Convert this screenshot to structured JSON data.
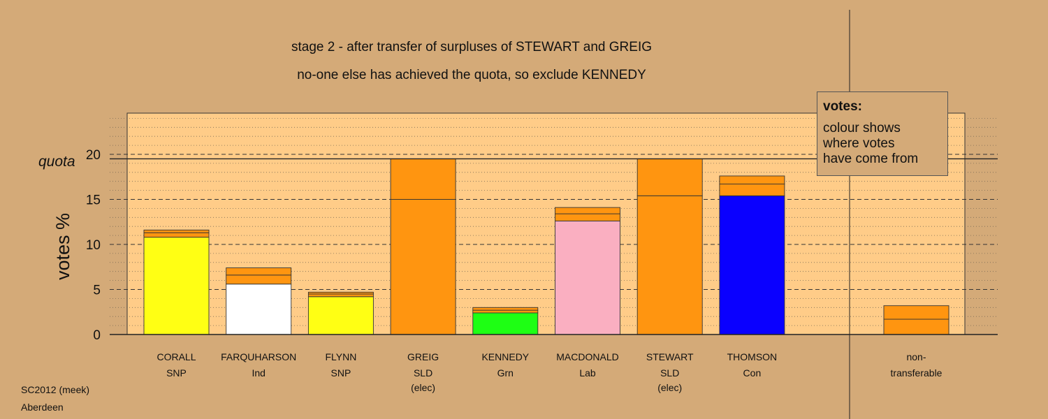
{
  "header": {
    "title": "stage 2 - after transfer of surpluses of STEWART and GREIG",
    "subtitle": "no-one else has achieved the quota, so exclude KENNEDY"
  },
  "footer": {
    "line1": "SC2012 (meek)",
    "line2": "Aberdeen"
  },
  "legend": {
    "heading": "votes:",
    "lines": [
      "colour shows",
      "where votes",
      "have come from"
    ]
  },
  "colors": {
    "page_bg": "#D4AA78",
    "plot_bg": "#FFCC88",
    "transfer_orange": "#FF9510",
    "snp_yellow": "#FFFF14",
    "ind_white": "#FFFFFF",
    "grn_green": "#1EFF14",
    "lab_pink": "#FAAFC1",
    "con_blue": "#0A00FF"
  },
  "chart_data": {
    "type": "bar",
    "stacked": true,
    "ylabel": "votes %",
    "ylim": [
      0,
      24.5
    ],
    "yticks": [
      0,
      5,
      10,
      15,
      20
    ],
    "grid": "dashed major at 5, dotted minor at 1",
    "quota": {
      "label": "quota",
      "value": 19.5
    },
    "legend_placement": "top-right",
    "candidates": [
      {
        "name": "CORALL",
        "party": "SNP",
        "note": "",
        "segments": [
          {
            "value": 10.8,
            "color": "#FFFF14"
          },
          {
            "value": 0.5,
            "color": "#FF9510"
          },
          {
            "value": 0.3,
            "color": "#FF9510"
          }
        ]
      },
      {
        "name": "FARQUHARSON",
        "party": "Ind",
        "note": "",
        "segments": [
          {
            "value": 5.6,
            "color": "#FFFFFF"
          },
          {
            "value": 1.0,
            "color": "#FF9510"
          },
          {
            "value": 0.8,
            "color": "#FF9510"
          }
        ]
      },
      {
        "name": "FLYNN",
        "party": "SNP",
        "note": "",
        "segments": [
          {
            "value": 4.2,
            "color": "#FFFF14"
          },
          {
            "value": 0.3,
            "color": "#FF9510"
          },
          {
            "value": 0.2,
            "color": "#FF9510"
          }
        ]
      },
      {
        "name": "GREIG",
        "party": "SLD",
        "note": "(elec)",
        "segments": [
          {
            "value": 15.0,
            "color": "#FF9510"
          },
          {
            "value": 4.5,
            "color": "#FF9510"
          }
        ]
      },
      {
        "name": "KENNEDY",
        "party": "Grn",
        "note": "",
        "segments": [
          {
            "value": 2.4,
            "color": "#1EFF14"
          },
          {
            "value": 0.3,
            "color": "#FF9510"
          },
          {
            "value": 0.3,
            "color": "#FF9510"
          }
        ]
      },
      {
        "name": "MACDONALD",
        "party": "Lab",
        "note": "",
        "segments": [
          {
            "value": 12.6,
            "color": "#FAAFC1"
          },
          {
            "value": 0.8,
            "color": "#FF9510"
          },
          {
            "value": 0.7,
            "color": "#FF9510"
          }
        ]
      },
      {
        "name": "STEWART",
        "party": "SLD",
        "note": "(elec)",
        "segments": [
          {
            "value": 15.4,
            "color": "#FF9510"
          },
          {
            "value": 4.1,
            "color": "#FF9510"
          }
        ]
      },
      {
        "name": "THOMSON",
        "party": "Con",
        "note": "",
        "segments": [
          {
            "value": 15.4,
            "color": "#0A00FF"
          },
          {
            "value": 1.3,
            "color": "#FF9510"
          },
          {
            "value": 0.9,
            "color": "#FF9510"
          }
        ]
      }
    ],
    "non_transferable": {
      "name": "non-",
      "party": "transferable",
      "note": "",
      "segments": [
        {
          "value": 1.7,
          "color": "#FF9510"
        },
        {
          "value": 1.5,
          "color": "#FF9510"
        }
      ]
    }
  }
}
